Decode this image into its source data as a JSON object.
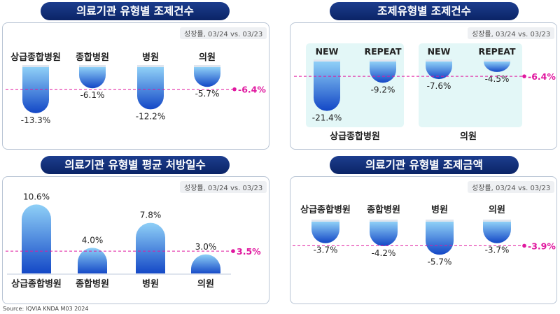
{
  "source": "Source: IQVIA KNDA M03 2024",
  "panels": [
    {
      "title": "의료기관 유형별 조제건수",
      "growth_label": "성장률, 03/24 vs. 03/23"
    },
    {
      "title": "조제유형별 조제건수",
      "growth_label": "성장률, 03/24 vs. 03/23"
    },
    {
      "title": "의료기관 유형별 평균 처방일수",
      "growth_label": "성장률, 03/24 vs. 03/23"
    },
    {
      "title": "의료기관 유형별 조제금액",
      "growth_label": "성장률, 03/24 vs. 03/23"
    }
  ],
  "colors": {
    "bar_light": "#8fd0f7",
    "bar_dark": "#1347c6",
    "avg_line": "#e0189f",
    "title_bg": "#13307a",
    "group_bg": "#e3f7f7"
  },
  "chart_data": [
    {
      "type": "bar",
      "title": "의료기관 유형별 조제건수",
      "categories": [
        "상급종합병원",
        "종합병원",
        "병원",
        "의원"
      ],
      "values": [
        -13.3,
        -6.1,
        -12.2,
        -5.7
      ],
      "labels": [
        "-13.3%",
        "-6.1%",
        "-12.2%",
        "-5.7%"
      ],
      "average": -6.4,
      "average_label": "-6.4%"
    },
    {
      "type": "bar",
      "title": "조제유형별 조제건수",
      "groups": [
        "상급종합병원",
        "의원"
      ],
      "categories": [
        "NEW",
        "REPEAT",
        "NEW",
        "REPEAT"
      ],
      "values": [
        -21.4,
        -9.2,
        -7.6,
        -4.5
      ],
      "labels": [
        "-21.4%",
        "-9.2%",
        "-7.6%",
        "-4.5%"
      ],
      "average": -6.4,
      "average_label": "-6.4%"
    },
    {
      "type": "bar",
      "title": "의료기관 유형별 평균 처방일수",
      "categories": [
        "상급종합병원",
        "종합병원",
        "병원",
        "의원"
      ],
      "values": [
        10.6,
        4.0,
        7.8,
        3.0
      ],
      "labels": [
        "10.6%",
        "4.0%",
        "7.8%",
        "3.0%"
      ],
      "average": 3.5,
      "average_label": "3.5%"
    },
    {
      "type": "bar",
      "title": "의료기관 유형별 조제금액",
      "categories": [
        "상급종합병원",
        "종합병원",
        "병원",
        "의원"
      ],
      "values": [
        -3.7,
        -4.2,
        -5.7,
        -3.7
      ],
      "labels": [
        "-3.7%",
        "-4.2%",
        "-5.7%",
        "-3.7%"
      ],
      "average": -3.9,
      "average_label": "-3.9%"
    }
  ]
}
